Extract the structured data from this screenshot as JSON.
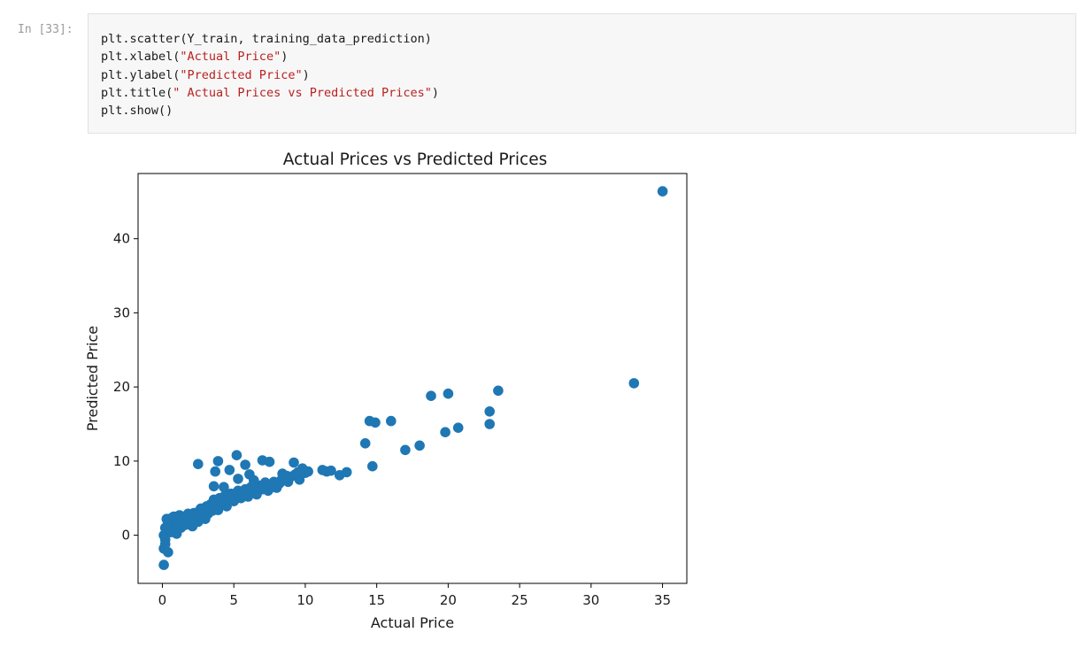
{
  "cell": {
    "prompt": "In [33]:",
    "code_lines": [
      {
        "pre": "plt.scatter(Y_train, training_data_prediction)",
        "str": "",
        "post": ""
      },
      {
        "pre": "plt.xlabel(",
        "str": "\"Actual Price\"",
        "post": ")"
      },
      {
        "pre": "plt.ylabel(",
        "str": "\"Predicted Price\"",
        "post": ")"
      },
      {
        "pre": "plt.title(",
        "str": "\" Actual Prices vs Predicted Prices\"",
        "post": ")"
      },
      {
        "pre": "plt.show()",
        "str": "",
        "post": ""
      }
    ]
  },
  "chart_data": {
    "type": "scatter",
    "title": "Actual Prices vs Predicted Prices",
    "xlabel": "Actual Price",
    "ylabel": "Predicted Price",
    "xlim": [
      -1.7,
      36.7
    ],
    "ylim": [
      -6.5,
      48.8
    ],
    "xticks": [
      0,
      5,
      10,
      15,
      20,
      25,
      30,
      35
    ],
    "yticks": [
      0,
      10,
      20,
      30,
      40
    ],
    "grid": false,
    "marker_color": "#1f77b4",
    "points": [
      [
        0.1,
        -4.0
      ],
      [
        0.1,
        -1.8
      ],
      [
        0.2,
        -1.2
      ],
      [
        0.4,
        -2.3
      ],
      [
        0.2,
        -0.6
      ],
      [
        0.1,
        0.0
      ],
      [
        0.3,
        0.4
      ],
      [
        0.2,
        1.0
      ],
      [
        0.4,
        1.6
      ],
      [
        0.3,
        2.2
      ],
      [
        0.6,
        0.4
      ],
      [
        0.5,
        1.4
      ],
      [
        0.7,
        2.4
      ],
      [
        0.9,
        1.8
      ],
      [
        1.0,
        0.2
      ],
      [
        0.8,
        0.8
      ],
      [
        1.1,
        2.0
      ],
      [
        1.2,
        2.7
      ],
      [
        1.3,
        1.0
      ],
      [
        1.5,
        2.3
      ],
      [
        1.6,
        1.4
      ],
      [
        1.8,
        2.9
      ],
      [
        2.0,
        2.0
      ],
      [
        2.1,
        1.2
      ],
      [
        2.2,
        3.0
      ],
      [
        2.4,
        2.5
      ],
      [
        2.5,
        1.8
      ],
      [
        2.6,
        3.3
      ],
      [
        2.8,
        2.8
      ],
      [
        3.0,
        2.2
      ],
      [
        3.1,
        3.9
      ],
      [
        3.2,
        2.9
      ],
      [
        3.4,
        4.2
      ],
      [
        3.5,
        3.3
      ],
      [
        3.6,
        4.8
      ],
      [
        3.8,
        4.0
      ],
      [
        3.9,
        3.4
      ],
      [
        4.0,
        5.0
      ],
      [
        4.2,
        4.3
      ],
      [
        4.4,
        5.4
      ],
      [
        4.5,
        3.9
      ],
      [
        4.6,
        4.9
      ],
      [
        4.8,
        5.6
      ],
      [
        5.0,
        4.6
      ],
      [
        5.1,
        5.2
      ],
      [
        5.3,
        6.0
      ],
      [
        5.5,
        5.0
      ],
      [
        5.6,
        5.8
      ],
      [
        5.8,
        6.2
      ],
      [
        6.0,
        5.2
      ],
      [
        6.2,
        6.5
      ],
      [
        6.4,
        6.0
      ],
      [
        6.6,
        5.5
      ],
      [
        6.8,
        6.7
      ],
      [
        7.0,
        6.2
      ],
      [
        7.2,
        7.1
      ],
      [
        7.4,
        6.0
      ],
      [
        7.6,
        6.8
      ],
      [
        7.8,
        7.2
      ],
      [
        8.0,
        6.4
      ],
      [
        8.2,
        7.0
      ],
      [
        8.5,
        7.6
      ],
      [
        8.8,
        7.2
      ],
      [
        9.0,
        7.9
      ],
      [
        9.3,
        8.2
      ],
      [
        9.6,
        7.5
      ],
      [
        10.0,
        8.4
      ],
      [
        10.2,
        8.6
      ],
      [
        11.2,
        8.8
      ],
      [
        11.5,
        8.6
      ],
      [
        11.8,
        8.7
      ],
      [
        12.4,
        8.1
      ],
      [
        12.9,
        8.5
      ],
      [
        2.5,
        9.6
      ],
      [
        3.9,
        10.0
      ],
      [
        3.7,
        8.6
      ],
      [
        4.7,
        8.8
      ],
      [
        5.2,
        10.8
      ],
      [
        5.8,
        9.5
      ],
      [
        6.1,
        8.2
      ],
      [
        7.0,
        10.1
      ],
      [
        7.5,
        9.9
      ],
      [
        9.2,
        9.8
      ],
      [
        3.6,
        6.6
      ],
      [
        4.3,
        6.5
      ],
      [
        5.3,
        7.6
      ],
      [
        6.4,
        7.4
      ],
      [
        8.4,
        8.3
      ],
      [
        9.8,
        9.0
      ],
      [
        14.2,
        12.4
      ],
      [
        14.5,
        15.4
      ],
      [
        14.9,
        15.2
      ],
      [
        14.7,
        9.3
      ],
      [
        16.0,
        15.4
      ],
      [
        17.0,
        11.5
      ],
      [
        18.0,
        12.1
      ],
      [
        18.8,
        18.8
      ],
      [
        20.0,
        19.1
      ],
      [
        19.8,
        13.9
      ],
      [
        20.7,
        14.5
      ],
      [
        22.9,
        16.7
      ],
      [
        22.9,
        15.0
      ],
      [
        23.5,
        19.5
      ],
      [
        33.0,
        20.5
      ],
      [
        35.0,
        46.4
      ],
      [
        0.3,
        0.9
      ],
      [
        0.5,
        2.0
      ],
      [
        0.8,
        2.5
      ],
      [
        1.0,
        1.5
      ],
      [
        1.4,
        2.2
      ],
      [
        1.7,
        2.6
      ],
      [
        2.3,
        2.2
      ],
      [
        2.7,
        3.6
      ],
      [
        3.3,
        3.6
      ],
      [
        3.7,
        4.5
      ],
      [
        4.1,
        4.5
      ],
      [
        4.9,
        5.3
      ],
      [
        5.4,
        5.5
      ],
      [
        5.9,
        5.6
      ],
      [
        6.5,
        6.3
      ],
      [
        7.1,
        6.7
      ],
      [
        7.7,
        6.5
      ],
      [
        8.3,
        7.4
      ],
      [
        8.7,
        8.0
      ],
      [
        9.5,
        8.5
      ]
    ]
  }
}
